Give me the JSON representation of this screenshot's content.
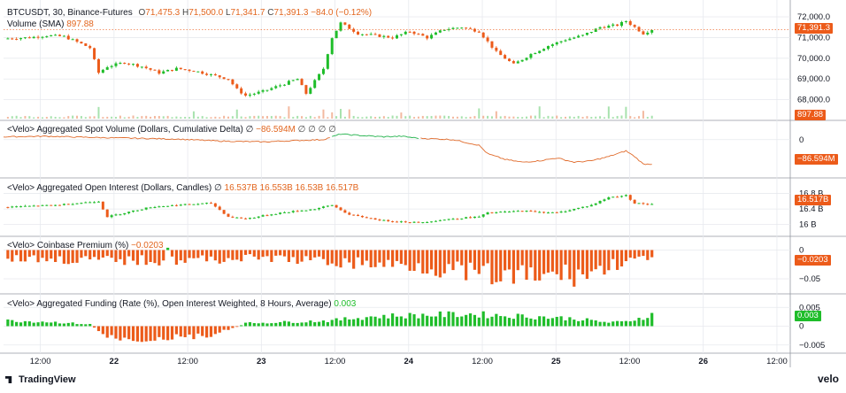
{
  "colors": {
    "up": "#1fbd2a",
    "down": "#ec5b1a",
    "line": "#e06a2a",
    "line_green": "#22b24c",
    "grid": "#e7e9ee",
    "sep": "#9598a1"
  },
  "header": {
    "symbol": "BTCUSDT, 30, Binance-Futures",
    "o_label": "O",
    "o": "71,475.3",
    "h_label": "H",
    "h": "71,500.0",
    "l_label": "L",
    "l": "71,341.7",
    "c_label": "C",
    "c": "71,391.3",
    "change": "−84.0 (−0.12%)",
    "volume_label": "Volume (SMA)",
    "volume_value": "897.88"
  },
  "panes": {
    "cvd": {
      "title": "<Velo> Aggregated Spot Volume (Dollars, Cumulative Delta)",
      "symbol": "∅",
      "value": "−86.594M",
      "extra": "∅ ∅ ∅ ∅",
      "tag": "−86.594M",
      "ticks": [
        "0"
      ]
    },
    "oi": {
      "title": "<Velo> Aggregated Open Interest (Dollars, Candles)",
      "symbol": "∅",
      "values": "16.537B 16.553B 16.53B 16.517B",
      "tag": "16.517B",
      "ticks": [
        "16.8 B",
        "16.4 B",
        "16 B"
      ]
    },
    "premium": {
      "title": "<Velo> Coinbase Premium (%)",
      "value": "−0.0203",
      "tag": "−0.0203",
      "ticks": [
        "0",
        "−0.05"
      ]
    },
    "funding": {
      "title": "<Velo> Aggregated Funding (Rate (%), Open Interest Weighted, 8 Hours, Average)",
      "value": "0.003",
      "tag": "0.003",
      "ticks": [
        "0.005",
        "0",
        "−0.005"
      ]
    }
  },
  "price_axis": {
    "ticks": [
      "72,000.0",
      "71,000.0",
      "70,000.0",
      "69,000.0",
      "68,000.0"
    ],
    "last_tag": "71,391.3",
    "volume_tag": "897.88"
  },
  "time_axis": [
    "12:00",
    "22",
    "12:00",
    "23",
    "12:00",
    "24",
    "12:00",
    "25",
    "12:00",
    "26",
    "12:00"
  ],
  "brand": {
    "tradingview": "TradingView",
    "velo": "velo"
  },
  "chart_data": [
    {
      "type": "candlestick",
      "name": "BTCUSDT 30m",
      "y_range": [
        67600,
        72300
      ],
      "x_range_hours": [
        0,
        91
      ],
      "close_points": [
        [
          0,
          70950
        ],
        [
          3,
          71000
        ],
        [
          5,
          71100
        ],
        [
          7,
          71050
        ],
        [
          9,
          70700
        ],
        [
          10,
          70500
        ],
        [
          11,
          69300
        ],
        [
          12,
          69600
        ],
        [
          14,
          69800
        ],
        [
          16,
          69600
        ],
        [
          18,
          69300
        ],
        [
          20,
          69500
        ],
        [
          22,
          69400
        ],
        [
          24,
          69200
        ],
        [
          26,
          69000
        ],
        [
          27,
          68500
        ],
        [
          28,
          68200
        ],
        [
          30,
          68400
        ],
        [
          32,
          68700
        ],
        [
          34,
          69000
        ],
        [
          35,
          68300
        ],
        [
          37,
          69500
        ],
        [
          38,
          71000
        ],
        [
          39,
          71700
        ],
        [
          41,
          71200
        ],
        [
          43,
          71100
        ],
        [
          45,
          71000
        ],
        [
          47,
          71300
        ],
        [
          49,
          71000
        ],
        [
          51,
          71400
        ],
        [
          53,
          71500
        ],
        [
          55,
          71300
        ],
        [
          57,
          70300
        ],
        [
          58,
          70000
        ],
        [
          59,
          69700
        ],
        [
          61,
          70200
        ],
        [
          63,
          70600
        ],
        [
          65,
          70900
        ],
        [
          67,
          71100
        ],
        [
          69,
          71500
        ],
        [
          71,
          71600
        ],
        [
          72,
          71800
        ],
        [
          73,
          71500
        ],
        [
          74,
          71200
        ],
        [
          75,
          71391
        ]
      ],
      "last": 71391.3
    },
    {
      "type": "bar",
      "name": "Volume (SMA)",
      "last": 897.88,
      "spikes_at_hours": [
        11,
        22,
        27,
        33,
        37,
        38,
        39,
        40,
        46,
        55,
        57,
        62,
        70,
        72,
        74
      ]
    },
    {
      "type": "line",
      "name": "Aggregated Spot Volume (Cumulative Delta)",
      "unit": "M",
      "y_range": [
        -120,
        40
      ],
      "points": [
        [
          0,
          10
        ],
        [
          5,
          12
        ],
        [
          10,
          8
        ],
        [
          15,
          5
        ],
        [
          20,
          2
        ],
        [
          25,
          -5
        ],
        [
          30,
          -8
        ],
        [
          34,
          -3
        ],
        [
          37,
          0
        ],
        [
          39,
          20
        ],
        [
          41,
          15
        ],
        [
          44,
          10
        ],
        [
          46,
          12
        ],
        [
          48,
          5
        ],
        [
          52,
          0
        ],
        [
          55,
          -20
        ],
        [
          56,
          -50
        ],
        [
          58,
          -70
        ],
        [
          60,
          -80
        ],
        [
          62,
          -75
        ],
        [
          64,
          -65
        ],
        [
          66,
          -80
        ],
        [
          68,
          -75
        ],
        [
          70,
          -60
        ],
        [
          71,
          -50
        ],
        [
          72,
          -40
        ],
        [
          73,
          -60
        ],
        [
          74,
          -86.594
        ]
      ],
      "green_segment_hours": [
        38,
        48
      ]
    },
    {
      "type": "candlestick",
      "name": "Aggregated Open Interest",
      "unit": "B",
      "y_range": [
        15.9,
        16.95
      ],
      "close_points": [
        [
          0,
          16.45
        ],
        [
          6,
          16.5
        ],
        [
          11,
          16.6
        ],
        [
          12,
          16.2
        ],
        [
          14,
          16.3
        ],
        [
          17,
          16.45
        ],
        [
          20,
          16.5
        ],
        [
          24,
          16.55
        ],
        [
          26,
          16.2
        ],
        [
          28,
          16.15
        ],
        [
          32,
          16.3
        ],
        [
          36,
          16.4
        ],
        [
          38,
          16.5
        ],
        [
          40,
          16.25
        ],
        [
          44,
          16.1
        ],
        [
          48,
          16.05
        ],
        [
          52,
          16.15
        ],
        [
          55,
          16.2
        ],
        [
          56,
          16.3
        ],
        [
          60,
          16.35
        ],
        [
          64,
          16.3
        ],
        [
          66,
          16.4
        ],
        [
          68,
          16.5
        ],
        [
          70,
          16.7
        ],
        [
          72,
          16.75
        ],
        [
          73,
          16.55
        ],
        [
          75,
          16.517
        ]
      ]
    },
    {
      "type": "bar",
      "name": "Coinbase Premium",
      "unit": "%",
      "y_range": [
        -0.07,
        0.01
      ],
      "profile_points": [
        [
          0,
          -0.015
        ],
        [
          10,
          -0.02
        ],
        [
          20,
          -0.02
        ],
        [
          30,
          -0.015
        ],
        [
          40,
          -0.025
        ],
        [
          48,
          -0.03
        ],
        [
          52,
          -0.04
        ],
        [
          56,
          -0.05
        ],
        [
          60,
          -0.055
        ],
        [
          64,
          -0.05
        ],
        [
          68,
          -0.045
        ],
        [
          72,
          -0.02
        ],
        [
          75,
          -0.0203
        ]
      ],
      "positive_at_hours": [
        19
      ]
    },
    {
      "type": "bar",
      "name": "Aggregated Funding",
      "unit": "%",
      "y_range": [
        -0.006,
        0.006
      ],
      "profile_points": [
        [
          0,
          0.0015
        ],
        [
          5,
          0.0012
        ],
        [
          10,
          0.0005
        ],
        [
          12,
          -0.003
        ],
        [
          16,
          -0.0035
        ],
        [
          20,
          -0.003
        ],
        [
          24,
          -0.0025
        ],
        [
          26,
          -0.001
        ],
        [
          28,
          0.0008
        ],
        [
          34,
          0.0012
        ],
        [
          38,
          0.0015
        ],
        [
          42,
          0.0025
        ],
        [
          46,
          0.0028
        ],
        [
          50,
          0.003
        ],
        [
          54,
          0.0032
        ],
        [
          58,
          0.0028
        ],
        [
          62,
          0.0025
        ],
        [
          66,
          0.002
        ],
        [
          68,
          0.0015
        ],
        [
          70,
          0.001
        ],
        [
          72,
          0.0012
        ],
        [
          75,
          0.003
        ]
      ]
    }
  ]
}
